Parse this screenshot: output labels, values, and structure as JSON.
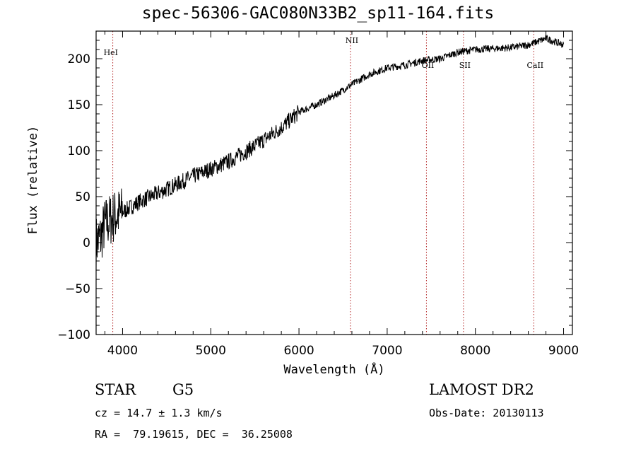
{
  "chart_data": {
    "type": "line",
    "title": "spec-56306-GAC080N33B2_sp11-164.fits",
    "xlabel": "Wavelength (Å)",
    "ylabel": "Flux (relative)",
    "xlim": [
      3700,
      9100
    ],
    "ylim": [
      -100,
      230
    ],
    "xticks": [
      4000,
      5000,
      6000,
      7000,
      8000,
      9000
    ],
    "yticks": [
      -100,
      -50,
      0,
      50,
      100,
      150,
      200
    ],
    "grid": false,
    "line_color": "#000000",
    "marker_color": "#b22222",
    "spectral_lines": [
      {
        "name": "HeI",
        "x": 3889
      },
      {
        "name": "NII",
        "x": 6584
      },
      {
        "name": "OII",
        "x": 7445
      },
      {
        "name": "SII",
        "x": 7865
      },
      {
        "name": "CaII",
        "x": 8662
      }
    ],
    "series": [
      {
        "values": [
          {
            "x": 3700,
            "y": 0
          },
          {
            "x": 3750,
            "y": 5
          },
          {
            "x": 3800,
            "y": 20
          },
          {
            "x": 3900,
            "y": 28
          },
          {
            "x": 4000,
            "y": 33
          },
          {
            "x": 4200,
            "y": 45
          },
          {
            "x": 4500,
            "y": 58
          },
          {
            "x": 4800,
            "y": 72
          },
          {
            "x": 5000,
            "y": 80
          },
          {
            "x": 5200,
            "y": 88
          },
          {
            "x": 5500,
            "y": 105
          },
          {
            "x": 5800,
            "y": 125
          },
          {
            "x": 6000,
            "y": 142
          },
          {
            "x": 6200,
            "y": 150
          },
          {
            "x": 6400,
            "y": 160
          },
          {
            "x": 6600,
            "y": 172
          },
          {
            "x": 6800,
            "y": 183
          },
          {
            "x": 7000,
            "y": 190
          },
          {
            "x": 7200,
            "y": 193
          },
          {
            "x": 7400,
            "y": 198
          },
          {
            "x": 7600,
            "y": 200
          },
          {
            "x": 7800,
            "y": 207
          },
          {
            "x": 8000,
            "y": 210
          },
          {
            "x": 8200,
            "y": 211
          },
          {
            "x": 8400,
            "y": 212
          },
          {
            "x": 8600,
            "y": 215
          },
          {
            "x": 8800,
            "y": 222
          },
          {
            "x": 9000,
            "y": 215
          }
        ]
      }
    ]
  },
  "info": {
    "object_class": "STAR",
    "subclass": "G5",
    "survey": "LAMOST DR2",
    "redshift_line": "cz = 14.7 ± 1.3 km/s",
    "obs_date_line": "Obs-Date: 20130113",
    "coords_line": "RA =  79.19615, DEC =  36.25008"
  }
}
